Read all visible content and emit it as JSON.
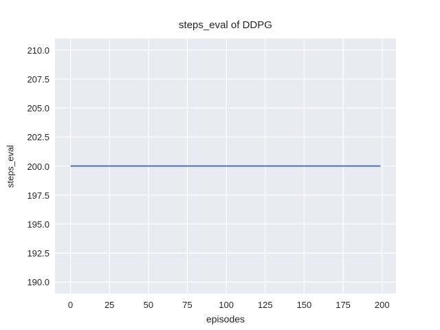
{
  "figure": {
    "background": "#ffffff"
  },
  "chart_data": {
    "type": "line",
    "title": "steps_eval of DDPG",
    "xlabel": "episodes",
    "ylabel": "steps_eval",
    "xlim": [
      -9.95,
      208.95
    ],
    "ylim": [
      189,
      211
    ],
    "x_ticks": [
      0,
      25,
      50,
      75,
      100,
      125,
      150,
      175,
      200
    ],
    "x_tick_labels": [
      "0",
      "25",
      "50",
      "75",
      "100",
      "125",
      "150",
      "175",
      "200"
    ],
    "y_ticks": [
      190.0,
      192.5,
      195.0,
      197.5,
      200.0,
      202.5,
      205.0,
      207.5,
      210.0
    ],
    "y_tick_labels": [
      "190.0",
      "192.5",
      "195.0",
      "197.5",
      "200.0",
      "202.5",
      "205.0",
      "207.5",
      "210.0"
    ],
    "grid": true,
    "legend_position": "none",
    "style": {
      "plot_background": "#eaeaf2",
      "grid_color": "#ffffff",
      "text_color": "#262626",
      "line_width": 1.9,
      "grid_line_width": 1.2
    },
    "series": [
      {
        "name": "DDPG",
        "color": "#4c72b0",
        "x": [
          0,
          199
        ],
        "y": [
          200,
          200
        ]
      }
    ]
  }
}
